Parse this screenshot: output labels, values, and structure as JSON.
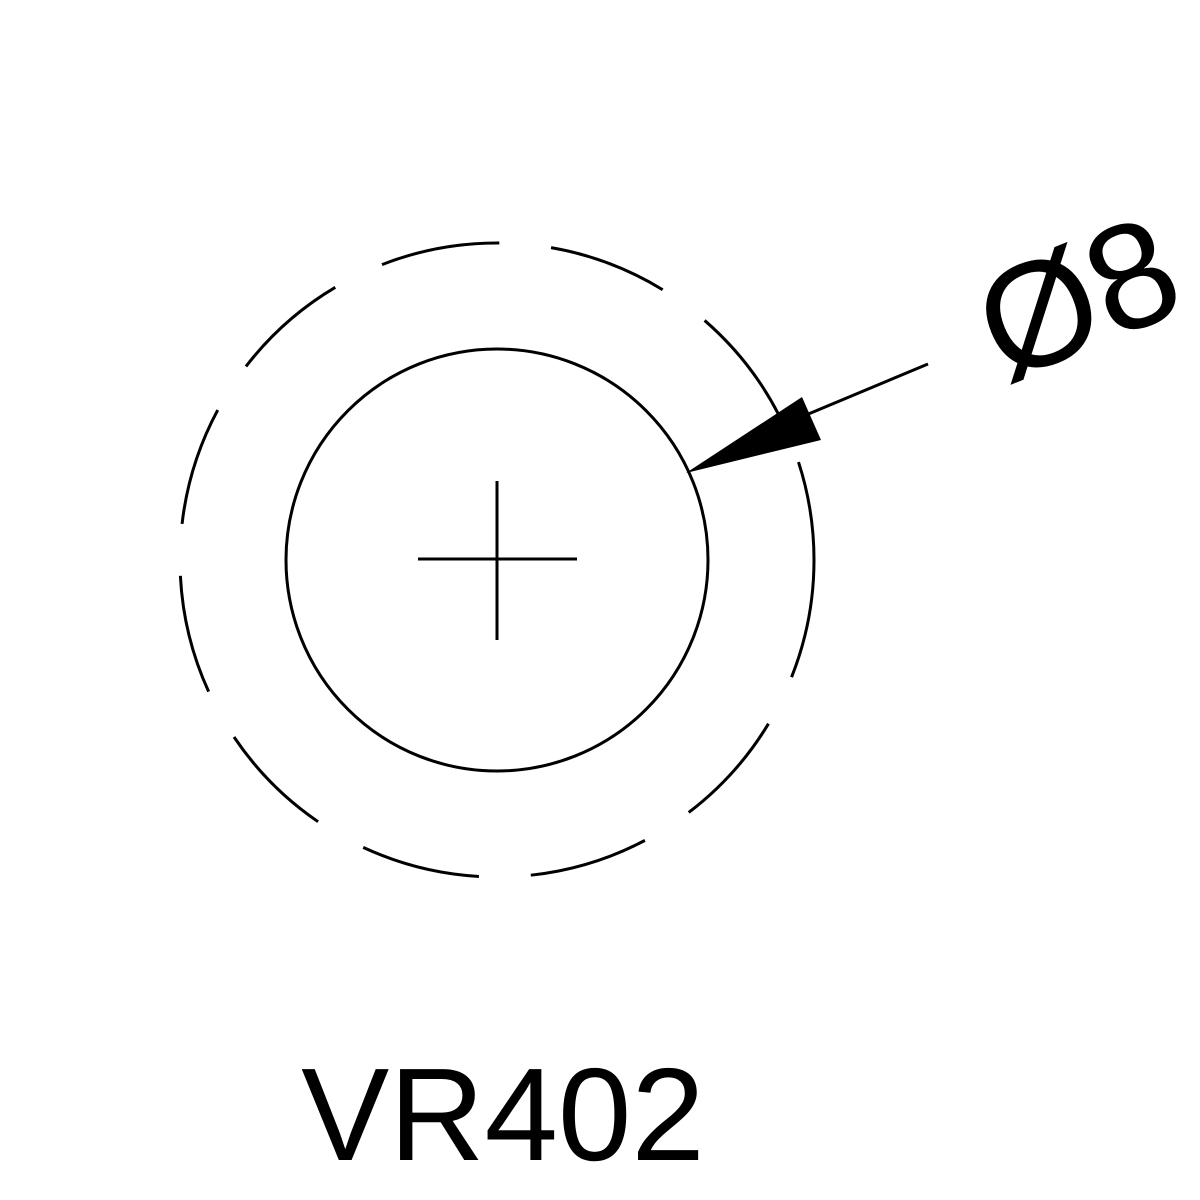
{
  "dimension": {
    "label": "Ø8"
  },
  "part": {
    "code": "VR402"
  },
  "colors": {
    "line": "#000000",
    "background": "#ffffff"
  }
}
